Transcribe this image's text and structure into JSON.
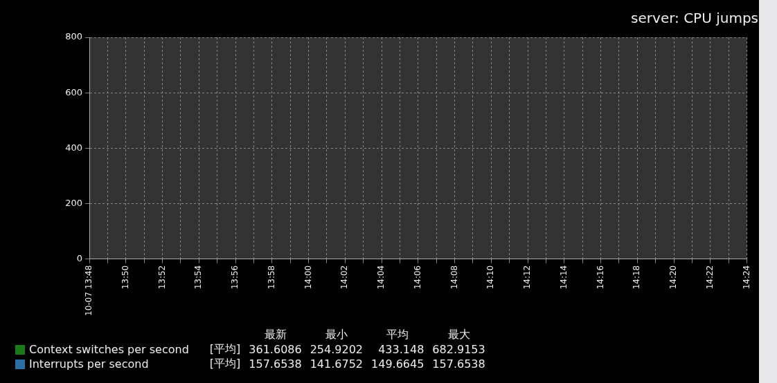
{
  "chart_data": {
    "type": "line",
    "title": "server: CPU jumps",
    "categories": [
      "10-07 13:48",
      null,
      "13:50",
      null,
      "13:52",
      null,
      "13:54",
      null,
      "13:56",
      null,
      "13:58",
      null,
      "14:00",
      null,
      "14:02",
      null,
      "14:04",
      null,
      "14:06",
      null,
      "14:08",
      null,
      "14:10",
      null,
      "14:12",
      null,
      "14:14",
      null,
      "14:16",
      null,
      "14:18",
      null,
      "14:20",
      null,
      "14:22",
      null,
      "14:24"
    ],
    "ylim": [
      0,
      800
    ],
    "yticks": [
      0,
      200,
      400,
      600,
      800
    ],
    "grid": true,
    "legend": "bottom left",
    "series": [
      {
        "name": "Context switches per second",
        "color": "#1a7a1a",
        "values": [
          null,
          null,
          null,
          null,
          null,
          null,
          null,
          null,
          null,
          null,
          null,
          null,
          null,
          null,
          null,
          null,
          null,
          null,
          null,
          null,
          null,
          null,
          null,
          null,
          null,
          null,
          null,
          null,
          null,
          null,
          null,
          null,
          null,
          null,
          null,
          null,
          null
        ]
      },
      {
        "name": "Interrupts per second",
        "color": "#2a6ea6",
        "values": [
          null,
          null,
          null,
          null,
          null,
          null,
          null,
          null,
          null,
          null,
          null,
          null,
          null,
          null,
          null,
          null,
          null,
          null,
          null,
          null,
          null,
          null,
          null,
          null,
          null,
          null,
          null,
          null,
          null,
          null,
          null,
          null,
          null,
          null,
          null,
          null,
          null
        ]
      }
    ],
    "annotations": [
      "最新",
      "最小",
      "平均",
      "最大",
      "[平均]",
      "361.6086",
      "254.9202",
      "433.148",
      "682.9153",
      "[平均]",
      "157.6538",
      "141.6752",
      "149.6645",
      "157.6538"
    ]
  }
}
